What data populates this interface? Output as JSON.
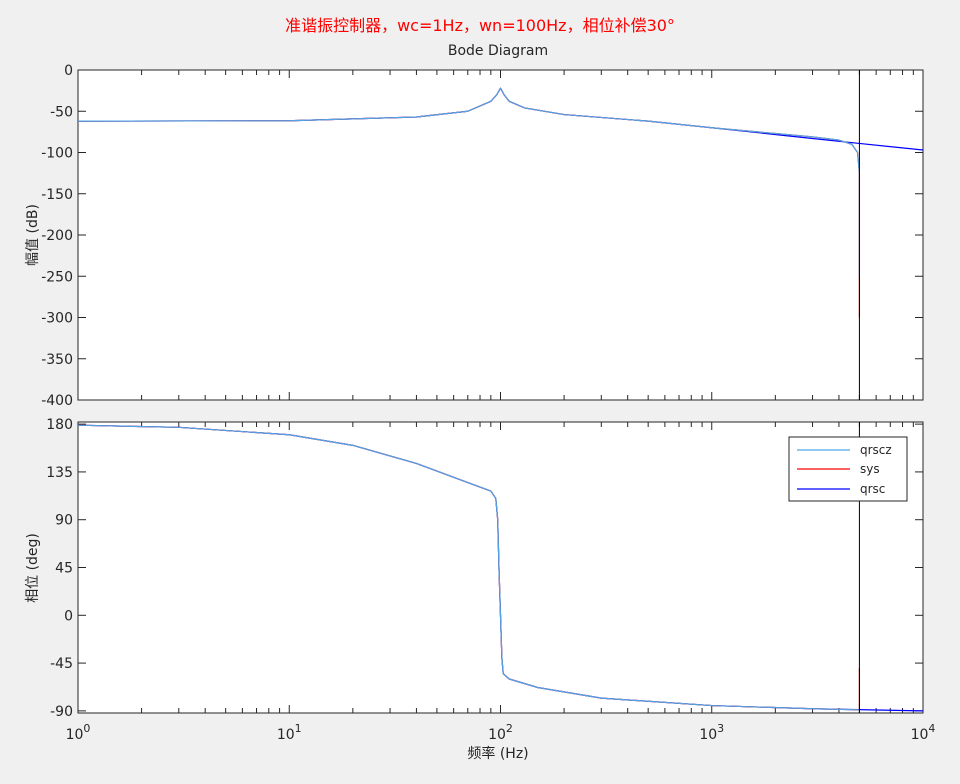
{
  "chart_data": {
    "type": "line",
    "supertitle": "准谐振控制器，wc=1Hz，wn=100Hz，相位补偿30°",
    "supertitle_color": "#ff0000",
    "title": "Bode Diagram",
    "xlabel": "频率 (Hz)",
    "xscale": "log",
    "xlim": [
      1,
      10000
    ],
    "x_ticks": [
      {
        "base": "10",
        "exp": "0"
      },
      {
        "base": "10",
        "exp": "1"
      },
      {
        "base": "10",
        "exp": "2"
      },
      {
        "base": "10",
        "exp": "3"
      },
      {
        "base": "10",
        "exp": "4"
      }
    ],
    "vertical_marker_hz": 5000,
    "grid": false,
    "legend": {
      "placement": "top-right (phase panel)",
      "entries": [
        {
          "label": "qrscz",
          "color": "#4da6e8"
        },
        {
          "label": "sys",
          "color": "#ff0000"
        },
        {
          "label": "qrsc",
          "color": "#0000ff"
        }
      ]
    },
    "panels": [
      {
        "name": "magnitude",
        "ylabel": "幅值 (dB)",
        "ylim": [
          -400,
          0
        ],
        "yticks": [
          "0",
          "-50",
          "-100",
          "-150",
          "-200",
          "-250",
          "-300",
          "-350",
          "-400"
        ],
        "series": [
          {
            "name": "qrsc",
            "color": "#0000ff",
            "points": [
              [
                1,
                -62
              ],
              [
                10,
                -61.5
              ],
              [
                40,
                -57
              ],
              [
                70,
                -50
              ],
              [
                90,
                -38
              ],
              [
                96,
                -30
              ],
              [
                100,
                -22
              ],
              [
                104,
                -30
              ],
              [
                110,
                -38
              ],
              [
                130,
                -46
              ],
              [
                200,
                -54
              ],
              [
                500,
                -62
              ],
              [
                1000,
                -70
              ],
              [
                3000,
                -83
              ],
              [
                5000,
                -89
              ],
              [
                10000,
                -97
              ]
            ]
          },
          {
            "name": "sys",
            "color": "#ff0000",
            "points": [
              [
                1,
                -62
              ],
              [
                10,
                -61.5
              ],
              [
                40,
                -57
              ],
              [
                70,
                -50
              ],
              [
                90,
                -38
              ],
              [
                96,
                -30
              ],
              [
                100,
                -22
              ],
              [
                104,
                -30
              ],
              [
                110,
                -38
              ],
              [
                130,
                -46
              ],
              [
                200,
                -54
              ],
              [
                500,
                -62
              ],
              [
                1000,
                -70
              ],
              [
                2000,
                -77
              ],
              [
                3000,
                -81
              ],
              [
                4000,
                -85
              ],
              [
                4600,
                -90
              ],
              [
                4900,
                -100
              ],
              [
                5000,
                -125
              ],
              [
                5000,
                -300
              ]
            ]
          },
          {
            "name": "qrscz",
            "color": "#4da6e8",
            "points": [
              [
                1,
                -62
              ],
              [
                10,
                -61.5
              ],
              [
                40,
                -57
              ],
              [
                70,
                -50
              ],
              [
                90,
                -38
              ],
              [
                96,
                -30
              ],
              [
                100,
                -22
              ],
              [
                104,
                -30
              ],
              [
                110,
                -38
              ],
              [
                130,
                -46
              ],
              [
                200,
                -54
              ],
              [
                500,
                -62
              ],
              [
                1000,
                -70
              ],
              [
                2000,
                -77
              ],
              [
                3000,
                -81
              ],
              [
                4000,
                -85
              ],
              [
                4600,
                -90
              ],
              [
                4900,
                -100
              ],
              [
                5000,
                -125
              ],
              [
                5000,
                -250
              ]
            ]
          }
        ]
      },
      {
        "name": "phase",
        "ylabel": "相位 (deg)",
        "ylim": [
          -92,
          182
        ],
        "yticks": [
          "180",
          "135",
          "90",
          "45",
          "0",
          "-45",
          "-90"
        ],
        "series": [
          {
            "name": "qrsc",
            "color": "#0000ff",
            "points": [
              [
                1,
                179
              ],
              [
                3,
                177
              ],
              [
                10,
                170
              ],
              [
                20,
                160
              ],
              [
                40,
                143
              ],
              [
                70,
                125
              ],
              [
                90,
                117
              ],
              [
                95,
                110
              ],
              [
                97,
                90
              ],
              [
                98.5,
                40
              ],
              [
                100,
                0
              ],
              [
                101.5,
                -40
              ],
              [
                103,
                -55
              ],
              [
                110,
                -60
              ],
              [
                150,
                -68
              ],
              [
                300,
                -78
              ],
              [
                1000,
                -85
              ],
              [
                3000,
                -88
              ],
              [
                10000,
                -90
              ]
            ]
          },
          {
            "name": "sys",
            "color": "#ff0000",
            "points": [
              [
                1,
                179
              ],
              [
                3,
                177
              ],
              [
                10,
                170
              ],
              [
                20,
                160
              ],
              [
                40,
                143
              ],
              [
                70,
                125
              ],
              [
                90,
                117
              ],
              [
                95,
                110
              ],
              [
                97,
                90
              ],
              [
                98.5,
                40
              ],
              [
                100,
                0
              ],
              [
                101.5,
                -40
              ],
              [
                103,
                -55
              ],
              [
                110,
                -60
              ],
              [
                150,
                -68
              ],
              [
                300,
                -78
              ],
              [
                1000,
                -85
              ],
              [
                3000,
                -88
              ],
              [
                4950,
                -89
              ],
              [
                5000,
                -89
              ],
              [
                5000,
                -50
              ]
            ]
          },
          {
            "name": "qrscz",
            "color": "#4da6e8",
            "points": [
              [
                1,
                179
              ],
              [
                3,
                177
              ],
              [
                10,
                170
              ],
              [
                20,
                160
              ],
              [
                40,
                143
              ],
              [
                70,
                125
              ],
              [
                90,
                117
              ],
              [
                95,
                110
              ],
              [
                97,
                90
              ],
              [
                98.5,
                40
              ],
              [
                100,
                0
              ],
              [
                101.5,
                -40
              ],
              [
                103,
                -55
              ],
              [
                110,
                -60
              ],
              [
                150,
                -68
              ],
              [
                300,
                -78
              ],
              [
                1000,
                -85
              ],
              [
                3000,
                -88
              ],
              [
                4950,
                -89
              ],
              [
                5000,
                -89
              ]
            ]
          }
        ]
      }
    ]
  }
}
